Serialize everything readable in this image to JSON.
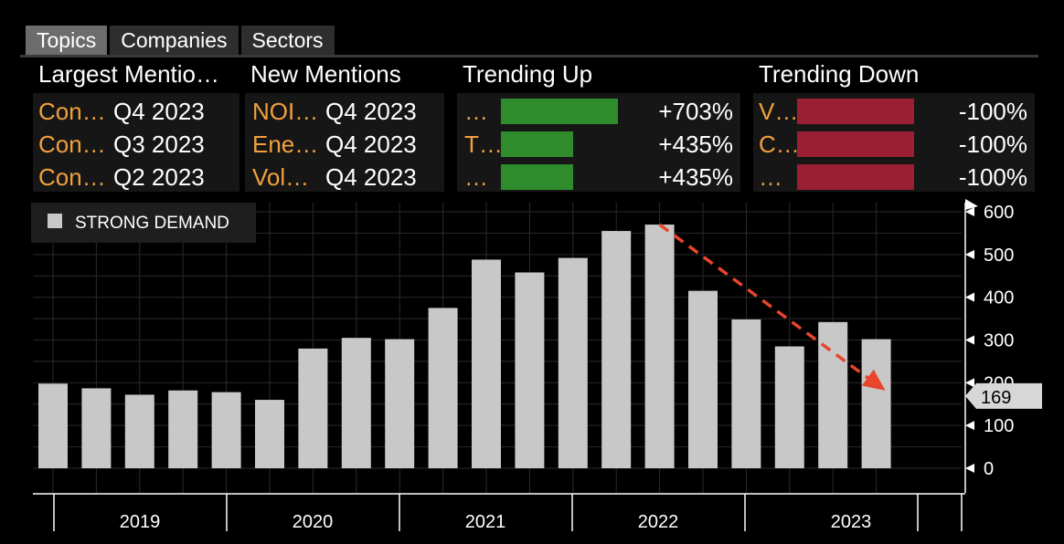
{
  "tabs": [
    {
      "label": "Topics",
      "active": true
    },
    {
      "label": "Companies",
      "active": false
    },
    {
      "label": "Sectors",
      "active": false
    }
  ],
  "panels": {
    "largest": {
      "title": "Largest Mentio…",
      "rows": [
        {
          "name": "Con…",
          "date": "Q4 2023"
        },
        {
          "name": "Con…",
          "date": "Q3 2023"
        },
        {
          "name": "Con…",
          "date": "Q2 2023"
        }
      ]
    },
    "new": {
      "title": "New Mentions",
      "rows": [
        {
          "name": "NOI…",
          "date": "Q4 2023"
        },
        {
          "name": "Ene…",
          "date": "Q4 2023"
        },
        {
          "name": "Vol…",
          "date": "Q4 2023"
        }
      ]
    },
    "trending_up": {
      "title": "Trending Up",
      "rows": [
        {
          "name": "…",
          "value": 703,
          "pct": "+703%"
        },
        {
          "name": "T…",
          "value": 435,
          "pct": "+435%"
        },
        {
          "name": "…",
          "value": 435,
          "pct": "+435%"
        }
      ]
    },
    "trending_down": {
      "title": "Trending Down",
      "rows": [
        {
          "name": "V…",
          "value": -100,
          "pct": "-100%"
        },
        {
          "name": "C…",
          "value": -100,
          "pct": "-100%"
        },
        {
          "name": "…",
          "value": -100,
          "pct": "-100%"
        }
      ]
    }
  },
  "colors": {
    "bar": "#c8c8c8",
    "green": "#2f8c2c",
    "red": "#9b1f33",
    "arrow": "#e8452c",
    "orange": "#f2a03c"
  },
  "chart_data": {
    "type": "bar",
    "legend": "STRONG DEMAND",
    "categories": [
      "2019Q1",
      "2019Q2",
      "2019Q3",
      "2019Q4",
      "2020Q1",
      "2020Q2",
      "2020Q3",
      "2020Q4",
      "2021Q1",
      "2021Q2",
      "2021Q3",
      "2021Q4",
      "2022Q1",
      "2022Q2",
      "2022Q3",
      "2022Q4",
      "2023Q1",
      "2023Q2",
      "2023Q3",
      "2023Q4"
    ],
    "values": [
      198,
      187,
      172,
      182,
      178,
      160,
      280,
      305,
      302,
      375,
      488,
      458,
      492,
      555,
      570,
      415,
      348,
      285,
      342,
      302
    ],
    "last_value": 169,
    "last_value_label": "169",
    "year_labels": [
      "2019",
      "2020",
      "2021",
      "2022",
      "2023"
    ],
    "yticks": [
      0,
      100,
      200,
      300,
      400,
      500,
      600
    ],
    "ytick_labels": [
      "0",
      "100",
      "200",
      "300",
      "400",
      "500",
      "600"
    ],
    "ylim": [
      0,
      600
    ],
    "annotation": "dashed trend arrow from the 2022 peak down to the latest value"
  }
}
